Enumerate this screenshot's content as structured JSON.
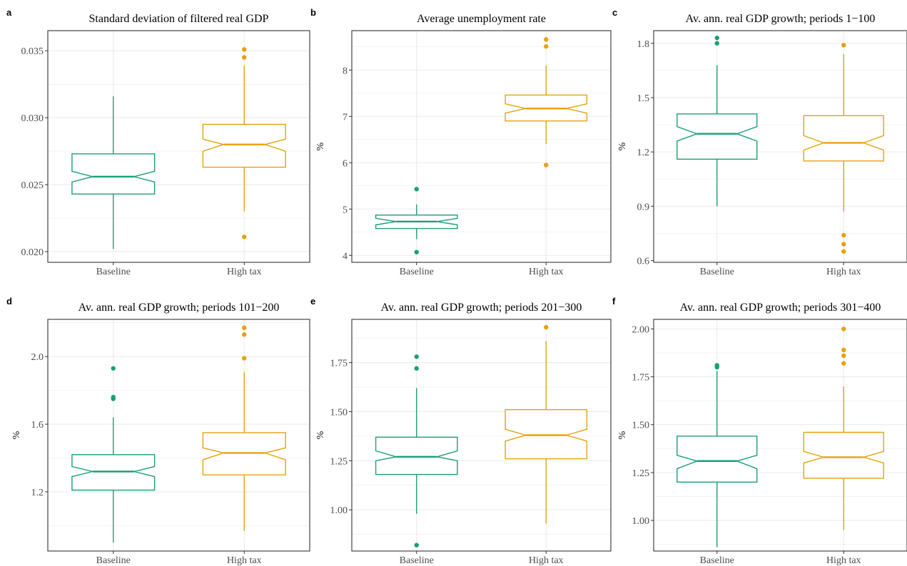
{
  "colors": {
    "Baseline": "#1b9e77",
    "High tax": "#e6a10e",
    "grid": "#ebebeb",
    "frame": "#333333"
  },
  "chart_data": [
    {
      "type": "boxplot",
      "letter": "a",
      "title": "Standard deviation of filtered real GDP",
      "ylabel": "",
      "categories": [
        "Baseline",
        "High tax"
      ],
      "ylim": [
        0.0192,
        0.0365
      ],
      "yticks": [
        0.02,
        0.025,
        0.03,
        0.035
      ],
      "ytick_labels": [
        "0.020",
        "0.025",
        "0.030",
        "0.035"
      ],
      "minor_yticks": [
        0.0225,
        0.0275,
        0.0325
      ],
      "notched": true,
      "grid": true,
      "boxes": [
        {
          "name": "Baseline",
          "q1": 0.0243,
          "median": 0.0256,
          "q3": 0.0273,
          "notch_low": 0.0252,
          "notch_high": 0.026,
          "whisker_low": 0.0202,
          "whisker_high": 0.0316,
          "outliers": []
        },
        {
          "name": "High tax",
          "q1": 0.0263,
          "median": 0.028,
          "q3": 0.0295,
          "notch_low": 0.0275,
          "notch_high": 0.0284,
          "whisker_low": 0.023,
          "whisker_high": 0.0339,
          "outliers": [
            0.0211,
            0.0345,
            0.0351
          ]
        }
      ]
    },
    {
      "type": "boxplot",
      "letter": "b",
      "title": "Average unemployment rate",
      "ylabel": "%",
      "categories": [
        "Baseline",
        "High tax"
      ],
      "ylim": [
        3.85,
        8.85
      ],
      "yticks": [
        4,
        5,
        6,
        7,
        8
      ],
      "ytick_labels": [
        "4",
        "5",
        "6",
        "7",
        "8"
      ],
      "minor_yticks": [
        4.5,
        5.5,
        6.5,
        7.5,
        8.5
      ],
      "notched": true,
      "grid": true,
      "boxes": [
        {
          "name": "Baseline",
          "q1": 4.58,
          "median": 4.73,
          "q3": 4.87,
          "notch_low": 4.66,
          "notch_high": 4.8,
          "whisker_low": 4.35,
          "whisker_high": 5.1,
          "outliers": [
            4.07,
            5.43
          ]
        },
        {
          "name": "High tax",
          "q1": 6.9,
          "median": 7.17,
          "q3": 7.46,
          "notch_low": 7.07,
          "notch_high": 7.27,
          "whisker_low": 6.4,
          "whisker_high": 8.1,
          "outliers": [
            5.95,
            8.51,
            8.66
          ]
        }
      ]
    },
    {
      "type": "boxplot",
      "letter": "c",
      "title": "Av. ann. real GDP growth; periods 1−100",
      "ylabel": "%",
      "categories": [
        "Baseline",
        "High tax"
      ],
      "ylim": [
        0.59,
        1.87
      ],
      "yticks": [
        0.6,
        0.9,
        1.2,
        1.5,
        1.8
      ],
      "ytick_labels": [
        "0.6",
        "0.9",
        "1.2",
        "1.5",
        "1.8"
      ],
      "minor_yticks": [
        0.75,
        1.05,
        1.35,
        1.65
      ],
      "notched": true,
      "grid": true,
      "boxes": [
        {
          "name": "Baseline",
          "q1": 1.16,
          "median": 1.3,
          "q3": 1.41,
          "notch_low": 1.26,
          "notch_high": 1.34,
          "whisker_low": 0.9,
          "whisker_high": 1.68,
          "outliers": [
            1.8,
            1.83
          ]
        },
        {
          "name": "High tax",
          "q1": 1.15,
          "median": 1.25,
          "q3": 1.4,
          "notch_low": 1.21,
          "notch_high": 1.29,
          "whisker_low": 0.87,
          "whisker_high": 1.74,
          "outliers": [
            0.65,
            0.69,
            0.74,
            1.79
          ]
        }
      ]
    },
    {
      "type": "boxplot",
      "letter": "d",
      "title": "Av. ann. real GDP growth; periods 101−200",
      "ylabel": "%",
      "categories": [
        "Baseline",
        "High tax"
      ],
      "ylim": [
        0.85,
        2.22
      ],
      "yticks": [
        1.2,
        1.6,
        2.0
      ],
      "ytick_labels": [
        "1.2",
        "1.6",
        "2.0"
      ],
      "minor_yticks": [
        1.0,
        1.4,
        1.8,
        2.2
      ],
      "notched": true,
      "grid": true,
      "boxes": [
        {
          "name": "Baseline",
          "q1": 1.21,
          "median": 1.32,
          "q3": 1.42,
          "notch_low": 1.29,
          "notch_high": 1.35,
          "whisker_low": 0.9,
          "whisker_high": 1.64,
          "outliers": [
            1.75,
            1.76,
            1.93
          ]
        },
        {
          "name": "High tax",
          "q1": 1.3,
          "median": 1.43,
          "q3": 1.55,
          "notch_low": 1.39,
          "notch_high": 1.46,
          "whisker_low": 0.97,
          "whisker_high": 1.91,
          "outliers": [
            1.99,
            2.13,
            2.17
          ]
        }
      ]
    },
    {
      "type": "boxplot",
      "letter": "e",
      "title": "Av. ann. real GDP growth; periods 201−300",
      "ylabel": "%",
      "categories": [
        "Baseline",
        "High tax"
      ],
      "ylim": [
        0.79,
        1.97
      ],
      "yticks": [
        1.0,
        1.25,
        1.5,
        1.75
      ],
      "ytick_labels": [
        "1.00",
        "1.25",
        "1.50",
        "1.75"
      ],
      "minor_yticks": [
        0.875,
        1.125,
        1.375,
        1.625,
        1.875
      ],
      "notched": true,
      "grid": true,
      "boxes": [
        {
          "name": "Baseline",
          "q1": 1.18,
          "median": 1.27,
          "q3": 1.37,
          "notch_low": 1.25,
          "notch_high": 1.3,
          "whisker_low": 0.98,
          "whisker_high": 1.62,
          "outliers": [
            0.82,
            1.72,
            1.78
          ]
        },
        {
          "name": "High tax",
          "q1": 1.26,
          "median": 1.38,
          "q3": 1.51,
          "notch_low": 1.35,
          "notch_high": 1.41,
          "whisker_low": 0.93,
          "whisker_high": 1.86,
          "outliers": [
            1.93
          ]
        }
      ]
    },
    {
      "type": "boxplot",
      "letter": "f",
      "title": "Av. ann. real GDP growth; periods 301−400",
      "ylabel": "%",
      "categories": [
        "Baseline",
        "High tax"
      ],
      "ylim": [
        0.84,
        2.05
      ],
      "yticks": [
        1.0,
        1.25,
        1.5,
        1.75,
        2.0
      ],
      "ytick_labels": [
        "1.00",
        "1.25",
        "1.50",
        "1.75",
        "2.00"
      ],
      "minor_yticks": [
        0.875,
        1.125,
        1.375,
        1.625,
        1.875
      ],
      "notched": true,
      "grid": true,
      "boxes": [
        {
          "name": "Baseline",
          "q1": 1.2,
          "median": 1.31,
          "q3": 1.44,
          "notch_low": 1.27,
          "notch_high": 1.34,
          "whisker_low": 0.86,
          "whisker_high": 1.78,
          "outliers": [
            1.8,
            1.81
          ]
        },
        {
          "name": "High tax",
          "q1": 1.22,
          "median": 1.33,
          "q3": 1.46,
          "notch_low": 1.3,
          "notch_high": 1.36,
          "whisker_low": 0.95,
          "whisker_high": 1.7,
          "outliers": [
            1.82,
            1.86,
            1.89,
            2.0
          ]
        }
      ]
    }
  ]
}
